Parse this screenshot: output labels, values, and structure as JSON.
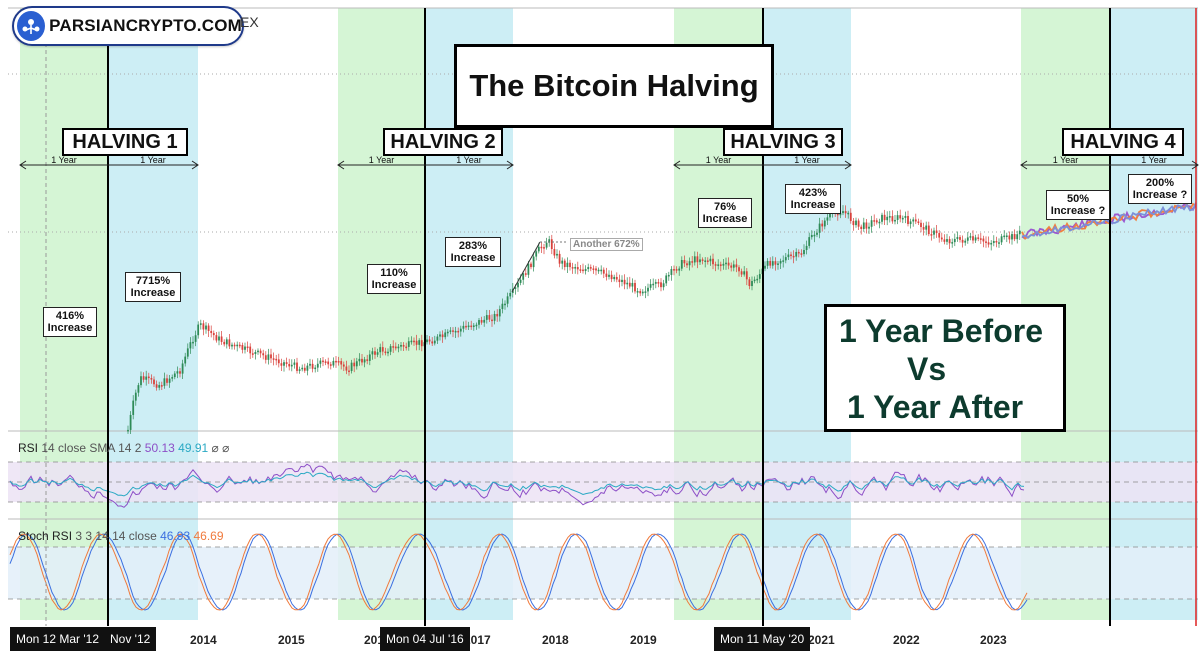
{
  "header": {
    "brand": "PARSIANCRYPTO.COM",
    "exchange_suffix": "EX",
    "brand_color": "#2a5fd1"
  },
  "title": "The Bitcoin Halving",
  "halvings": [
    {
      "label": "HALVING 1",
      "before": "1 Year",
      "after": "1 Year"
    },
    {
      "label": "HALVING 2",
      "before": "1 Year",
      "after": "1 Year"
    },
    {
      "label": "HALVING 3",
      "before": "1 Year",
      "after": "1 Year"
    },
    {
      "label": "HALVING 4",
      "before": "1 Year",
      "after": "1 Year"
    }
  ],
  "increases": [
    {
      "pct": "416%",
      "word": "Increase"
    },
    {
      "pct": "7715%",
      "word": "Increase"
    },
    {
      "pct": "110%",
      "word": "Increase"
    },
    {
      "pct": "283%",
      "word": "Increase"
    },
    {
      "pct": "76%",
      "word": "Increase"
    },
    {
      "pct": "423%",
      "word": "Increase"
    },
    {
      "pct": "50%",
      "word": "Increase ?"
    },
    {
      "pct": "200%",
      "word": "Increase ?"
    }
  ],
  "another_note": "Another 672%",
  "comparison": {
    "line1": "1 Year Before",
    "line2": "Vs",
    "line3": "1 Year After"
  },
  "rsi": {
    "name": "RSI",
    "params": "14 close SMA 14 2",
    "value": "50.13",
    "sma": "49.91",
    "flags": "⌀ ⌀"
  },
  "stoch": {
    "name": "Stoch RSI",
    "params": "3 3 14 14 close",
    "k": "46.93",
    "d": "46.69"
  },
  "x_axis": {
    "ticks": [
      "2014",
      "2015",
      "2016",
      "2017",
      "2018",
      "2019",
      "2021",
      "2022",
      "2023"
    ],
    "date_tags": [
      "Mon 12 Mar '12",
      "Nov '12",
      "Mon 04 Jul '16",
      "Mon 11 May '20"
    ]
  },
  "colors": {
    "before_zone": "#d5f5d5",
    "after_zone": "#cdeef5",
    "rsi_band": "#ece3f5",
    "stoch_band": "#e3eef9",
    "rsi_line": "#8d4fc7",
    "rsi_sma": "#2aa9c4",
    "stoch_k": "#3b6fe0",
    "stoch_d": "#f07a3c",
    "up": "#2e8b57",
    "down": "#d9413b"
  },
  "chart_data": {
    "type": "line",
    "title": "The Bitcoin Halving",
    "x_labels": [
      "2014",
      "2015",
      "2016",
      "2017",
      "2018",
      "2019",
      "2021",
      "2022",
      "2023"
    ],
    "halving_dates": [
      "Nov '12",
      "Mon 04 Jul '16",
      "Mon 11 May '20"
    ],
    "series": [
      {
        "name": "RSI",
        "last": 50.13
      },
      {
        "name": "SMA",
        "last": 49.91
      },
      {
        "name": "Stoch K",
        "last": 46.93
      },
      {
        "name": "Stoch D",
        "last": 46.69
      }
    ],
    "period_increases": [
      {
        "halving": "HALVING 1",
        "before": "416%",
        "after": "7715%"
      },
      {
        "halving": "HALVING 2",
        "before": "110%",
        "after": "283%"
      },
      {
        "halving": "HALVING 3",
        "before": "76%",
        "after": "423%"
      },
      {
        "halving": "HALVING 4",
        "before": "50%",
        "after": "200%"
      }
    ],
    "scale": "log",
    "grid": false
  }
}
